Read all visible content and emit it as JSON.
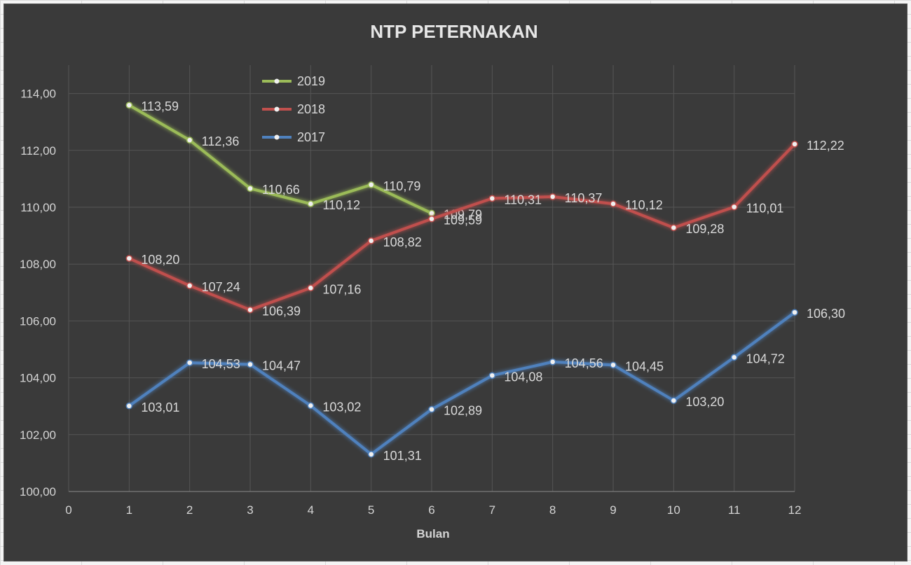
{
  "chart_data": {
    "type": "line",
    "title": "NTP  PETERNAKAN",
    "xlabel": "Bulan",
    "ylabel": "",
    "xlim": [
      0,
      12
    ],
    "ylim": [
      100,
      115
    ],
    "x_ticks": [
      0,
      1,
      2,
      3,
      4,
      5,
      6,
      7,
      8,
      9,
      10,
      11,
      12
    ],
    "x_tick_labels": [
      "0",
      "1",
      "2",
      "3",
      "4",
      "5",
      "6",
      "7",
      "8",
      "9",
      "10",
      "11",
      "12"
    ],
    "y_ticks": [
      100,
      102,
      104,
      106,
      108,
      110,
      112,
      114
    ],
    "y_tick_labels": [
      "100,00",
      "102,00",
      "104,00",
      "106,00",
      "108,00",
      "110,00",
      "112,00",
      "114,00"
    ],
    "grid": true,
    "legend_position": "top-left inside plot",
    "series": [
      {
        "name": "2019",
        "color": "#9bbb59",
        "x": [
          1,
          2,
          3,
          4,
          5,
          6
        ],
        "values": [
          113.59,
          112.36,
          110.66,
          110.12,
          110.79,
          109.79
        ],
        "labels": [
          "113,59",
          "112,36",
          "110,66",
          "110,12",
          "110,79",
          "109,79"
        ]
      },
      {
        "name": "2018",
        "color": "#c0504d",
        "x": [
          1,
          2,
          3,
          4,
          5,
          6,
          7,
          8,
          9,
          10,
          11,
          12
        ],
        "values": [
          108.2,
          107.24,
          106.39,
          107.16,
          108.82,
          109.59,
          110.31,
          110.37,
          110.12,
          109.28,
          110.01,
          112.22
        ],
        "labels": [
          "108,20",
          "107,24",
          "106,39",
          "107,16",
          "108,82",
          "109,59",
          "110,31",
          "110,37",
          "110,12",
          "109,28",
          "110,01",
          "112,22"
        ]
      },
      {
        "name": "2017",
        "color": "#4f81bd",
        "x": [
          1,
          2,
          3,
          4,
          5,
          6,
          7,
          8,
          9,
          10,
          11,
          12
        ],
        "values": [
          103.01,
          104.53,
          104.47,
          103.02,
          101.31,
          102.89,
          104.08,
          104.56,
          104.45,
          103.2,
          104.72,
          106.3
        ],
        "labels": [
          "103,01",
          "104,53",
          "104,47",
          "103,02",
          "101,31",
          "102,89",
          "104,08",
          "104,56",
          "104,45",
          "103,20",
          "104,72",
          "106,30"
        ]
      }
    ]
  }
}
